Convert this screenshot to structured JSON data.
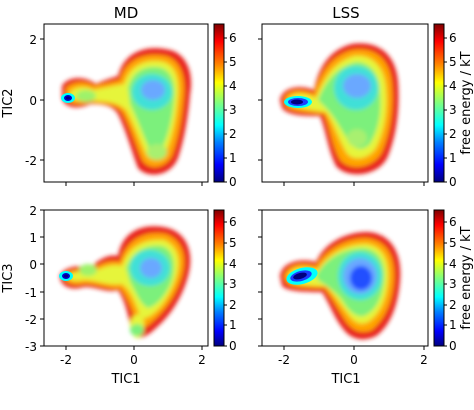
{
  "colorbar": {
    "label": "free energy / kT",
    "ticks": [
      0,
      1,
      2,
      3,
      4,
      5,
      6
    ],
    "range": [
      0,
      6.6
    ],
    "colormap": "jet"
  },
  "chart_data": [
    {
      "type": "heatmap",
      "title": "MD",
      "xlabel": "",
      "ylabel": "TIC2",
      "xlim": [
        -2.4,
        2.0
      ],
      "ylim": [
        -2.7,
        2.7
      ],
      "xticks": [
        -2,
        0,
        2
      ],
      "xticklabels": [],
      "yticks": [
        -2,
        0,
        2
      ],
      "yticklabels": [
        "-2",
        "0",
        "2"
      ],
      "minima": [
        {
          "x": -2.0,
          "y": 0.05,
          "value": 0.0
        },
        {
          "x": 0.4,
          "y": 0.35,
          "value": 2.6
        },
        {
          "x": 0.55,
          "y": -1.7,
          "value": 3.6
        },
        {
          "x": -1.3,
          "y": 0.0,
          "value": 3.8
        }
      ]
    },
    {
      "type": "heatmap",
      "title": "LSS",
      "xlabel": "",
      "ylabel": "",
      "xlim": [
        -2.4,
        2.0
      ],
      "ylim": [
        -2.7,
        2.7
      ],
      "xticks": [
        -2,
        0,
        2
      ],
      "xticklabels": [],
      "yticks": [
        -2,
        0,
        2
      ],
      "yticklabels": [],
      "minima": [
        {
          "x": -1.6,
          "y": -0.1,
          "value": 0.0
        },
        {
          "x": 0.45,
          "y": 0.3,
          "value": 2.3
        },
        {
          "x": 0.45,
          "y": -1.3,
          "value": 3.2
        }
      ]
    },
    {
      "type": "heatmap",
      "title": "",
      "xlabel": "TIC1",
      "ylabel": "TIC3",
      "xlim": [
        -2.4,
        2.0
      ],
      "ylim": [
        -3.0,
        2.0
      ],
      "xticks": [
        -2,
        0,
        2
      ],
      "xticklabels": [
        "-2",
        "0",
        "2"
      ],
      "yticks": [
        -3,
        -2,
        -1,
        0,
        1,
        2
      ],
      "yticklabels": [
        "-3",
        "-2",
        "-1",
        "0",
        "1",
        "2"
      ],
      "minima": [
        {
          "x": -1.95,
          "y": 0.0,
          "value": 0.0
        },
        {
          "x": 0.4,
          "y": 0.15,
          "value": 2.5
        },
        {
          "x": 0.1,
          "y": -2.45,
          "value": 3.6
        },
        {
          "x": -1.35,
          "y": 0.3,
          "value": 3.5
        }
      ]
    },
    {
      "type": "heatmap",
      "title": "",
      "xlabel": "TIC1",
      "ylabel": "",
      "xlim": [
        -2.4,
        2.0
      ],
      "ylim": [
        -3.0,
        2.0
      ],
      "xticks": [
        -2,
        0,
        2
      ],
      "xticklabels": [
        "-2",
        "0",
        "2"
      ],
      "yticks": [
        -3,
        -2,
        -1,
        0,
        1,
        2
      ],
      "yticklabels": [],
      "minima": [
        {
          "x": -1.55,
          "y": 0.05,
          "value": 0.0
        },
        {
          "x": 0.45,
          "y": -0.05,
          "value": 1.8
        }
      ]
    }
  ]
}
